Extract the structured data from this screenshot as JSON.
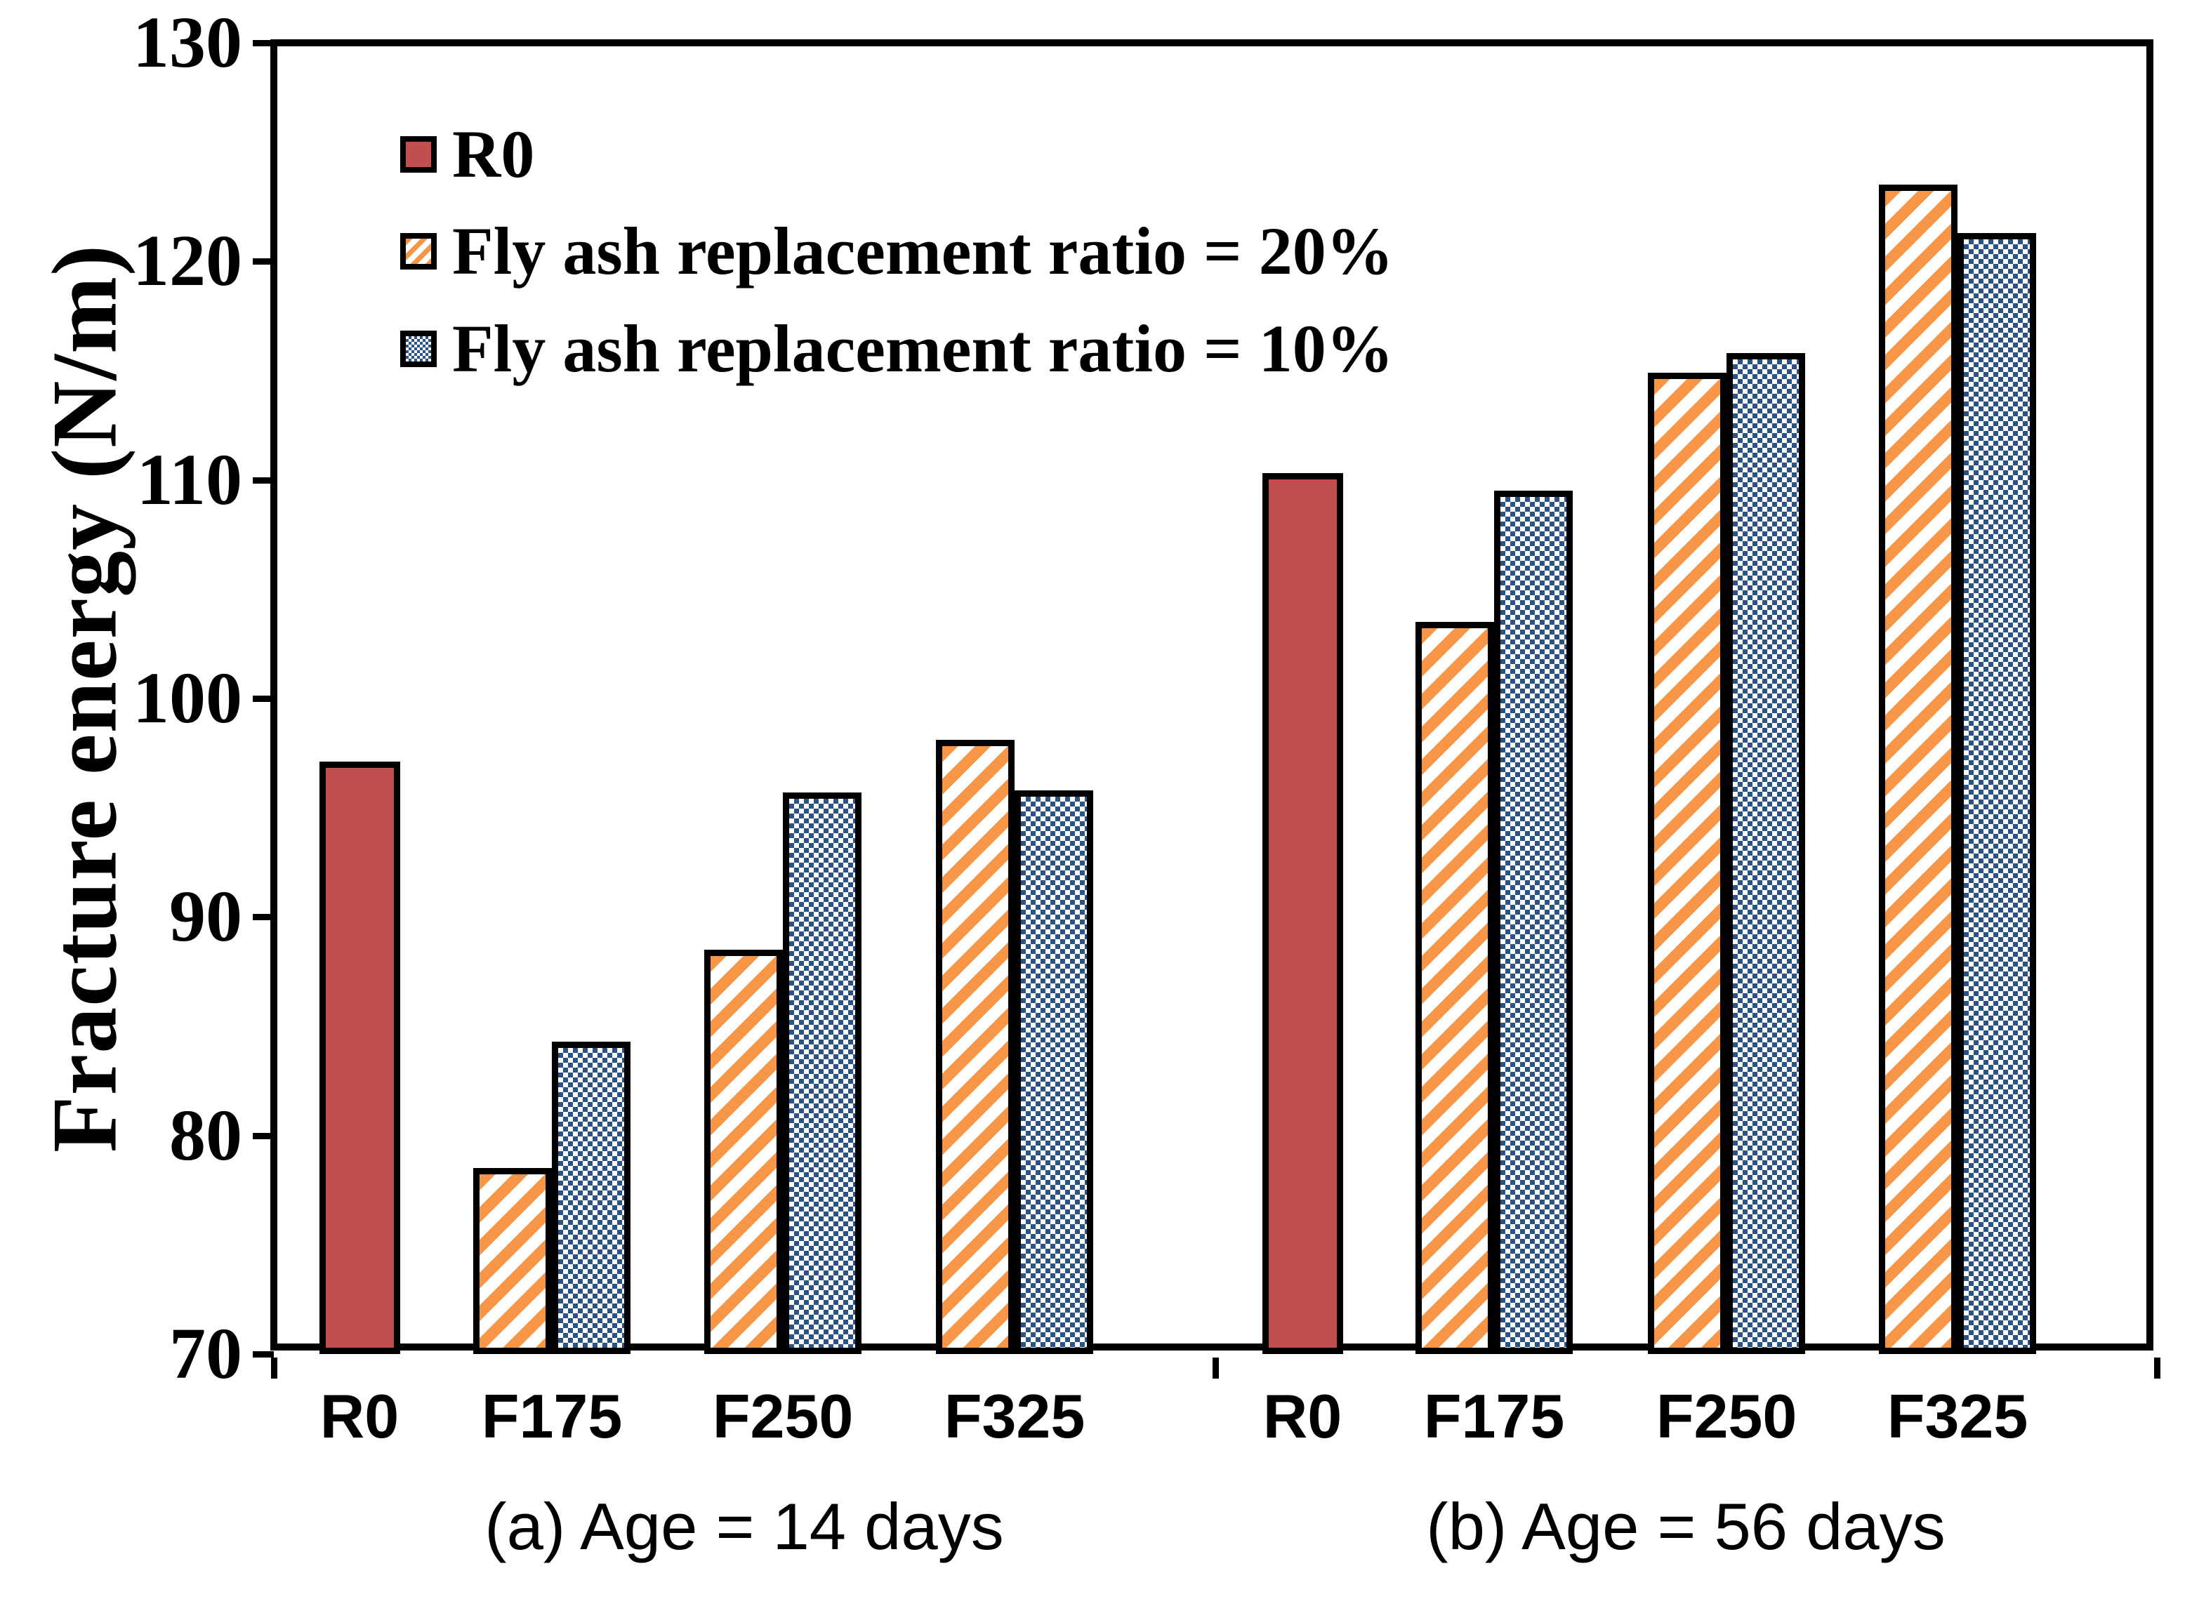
{
  "figure": {
    "ylabel": "Fracture energy (N/m)",
    "background": "#ffffff"
  },
  "colors": {
    "r0_fill": "#C0504D",
    "hatch20_orange": "#F79646",
    "hatch10_blue": "#2A5283",
    "axis": "#000000"
  },
  "legend": {
    "items": [
      {
        "label": "R0",
        "swatch": "solid-red"
      },
      {
        "label": "Fly ash replacement ratio = 20%",
        "swatch": "orange-diagonal-hatch"
      },
      {
        "label": "Fly ash replacement ratio = 10%",
        "swatch": "blue-dot-hatch"
      }
    ]
  },
  "chart_data": {
    "type": "bar",
    "ylabel": "Fracture energy (N/m)",
    "ylim": [
      70,
      130
    ],
    "yticks": [
      70,
      80,
      90,
      100,
      110,
      120,
      130
    ],
    "grid": false,
    "legend_position": "upper-left-inside",
    "series_names": [
      "R0",
      "Fly ash replacement ratio = 20%",
      "Fly ash replacement ratio = 10%"
    ],
    "groups": [
      {
        "caption": "(a) Age = 14 days",
        "categories": [
          "R0",
          "F175",
          "F250",
          "F325"
        ],
        "bars": [
          {
            "category": "R0",
            "series": "R0",
            "value": 97.1
          },
          {
            "category": "F175",
            "series": "20%",
            "value": 78.5
          },
          {
            "category": "F175",
            "series": "10%",
            "value": 84.3
          },
          {
            "category": "F250",
            "series": "20%",
            "value": 88.5
          },
          {
            "category": "F250",
            "series": "10%",
            "value": 95.7
          },
          {
            "category": "F325",
            "series": "20%",
            "value": 98.1
          },
          {
            "category": "F325",
            "series": "10%",
            "value": 95.8
          }
        ]
      },
      {
        "caption": "(b) Age = 56 days",
        "categories": [
          "R0",
          "F175",
          "F250",
          "F325"
        ],
        "bars": [
          {
            "category": "R0",
            "series": "R0",
            "value": 110.3
          },
          {
            "category": "F175",
            "series": "20%",
            "value": 103.5
          },
          {
            "category": "F175",
            "series": "10%",
            "value": 109.5
          },
          {
            "category": "F250",
            "series": "20%",
            "value": 114.9
          },
          {
            "category": "F250",
            "series": "10%",
            "value": 115.8
          },
          {
            "category": "F325",
            "series": "20%",
            "value": 123.5
          },
          {
            "category": "F325",
            "series": "10%",
            "value": 121.3
          }
        ]
      }
    ]
  }
}
